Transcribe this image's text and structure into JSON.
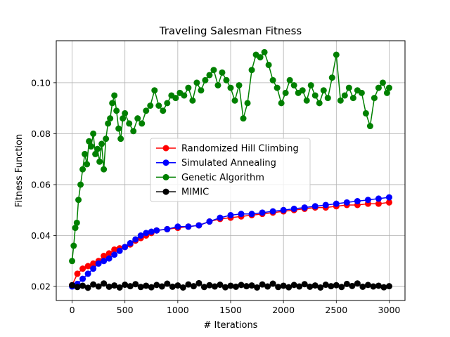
{
  "chart_data": {
    "type": "line",
    "title": "Traveling Salesman Fitness",
    "xlabel": "# Iterations",
    "ylabel": "Fitness Function",
    "xlim": [
      -150,
      3150
    ],
    "ylim": [
      0.0145,
      0.1165
    ],
    "xticks": [
      0,
      500,
      1000,
      1500,
      2000,
      2500,
      3000
    ],
    "yticks": [
      0.02,
      0.04,
      0.06,
      0.08,
      0.1
    ],
    "xtick_labels": [
      "0",
      "500",
      "1000",
      "1500",
      "2000",
      "2500",
      "3000"
    ],
    "ytick_labels": [
      "0.02",
      "0.04",
      "0.06",
      "0.08",
      "0.10"
    ],
    "grid": true,
    "legend_position": "center",
    "series": [
      {
        "name": "Randomized Hill Climbing",
        "color": "#ff0000",
        "x": [
          0,
          50,
          100,
          150,
          200,
          250,
          300,
          350,
          400,
          450,
          500,
          550,
          600,
          650,
          700,
          750,
          800,
          900,
          1000,
          1100,
          1200,
          1300,
          1400,
          1500,
          1600,
          1700,
          1800,
          1900,
          2000,
          2100,
          2200,
          2300,
          2400,
          2500,
          2600,
          2700,
          2800,
          2900,
          3000
        ],
        "y": [
          0.0205,
          0.025,
          0.027,
          0.028,
          0.029,
          0.03,
          0.032,
          0.033,
          0.0345,
          0.035,
          0.0355,
          0.0365,
          0.038,
          0.039,
          0.04,
          0.041,
          0.042,
          0.0425,
          0.043,
          0.0435,
          0.044,
          0.0455,
          0.0465,
          0.047,
          0.0475,
          0.048,
          0.0485,
          0.049,
          0.0495,
          0.05,
          0.0505,
          0.051,
          0.051,
          0.0515,
          0.052,
          0.052,
          0.0525,
          0.0525,
          0.053
        ]
      },
      {
        "name": "Simulated Annealing",
        "color": "#0000ff",
        "x": [
          0,
          50,
          100,
          150,
          200,
          250,
          300,
          350,
          400,
          450,
          500,
          550,
          600,
          650,
          700,
          750,
          800,
          900,
          1000,
          1100,
          1200,
          1300,
          1400,
          1500,
          1600,
          1700,
          1800,
          1900,
          2000,
          2100,
          2200,
          2300,
          2400,
          2500,
          2600,
          2700,
          2800,
          2900,
          3000
        ],
        "y": [
          0.02,
          0.021,
          0.023,
          0.025,
          0.027,
          0.029,
          0.03,
          0.031,
          0.0325,
          0.034,
          0.0355,
          0.037,
          0.0385,
          0.04,
          0.041,
          0.0415,
          0.042,
          0.0425,
          0.0435,
          0.0435,
          0.044,
          0.0455,
          0.047,
          0.048,
          0.0485,
          0.0485,
          0.049,
          0.0495,
          0.05,
          0.0505,
          0.051,
          0.0515,
          0.052,
          0.0525,
          0.053,
          0.0535,
          0.054,
          0.0545,
          0.055
        ]
      },
      {
        "name": "Genetic Algorithm",
        "color": "#008000",
        "x": [
          0,
          15,
          30,
          45,
          60,
          80,
          100,
          120,
          140,
          160,
          180,
          200,
          220,
          240,
          260,
          280,
          300,
          320,
          340,
          360,
          380,
          400,
          420,
          440,
          460,
          480,
          500,
          540,
          580,
          620,
          660,
          700,
          740,
          780,
          820,
          860,
          900,
          940,
          980,
          1020,
          1060,
          1100,
          1140,
          1180,
          1220,
          1260,
          1300,
          1340,
          1380,
          1420,
          1460,
          1500,
          1540,
          1580,
          1620,
          1660,
          1700,
          1740,
          1780,
          1820,
          1860,
          1900,
          1940,
          1980,
          2020,
          2060,
          2100,
          2140,
          2180,
          2220,
          2260,
          2300,
          2340,
          2380,
          2420,
          2460,
          2500,
          2540,
          2580,
          2620,
          2660,
          2700,
          2740,
          2780,
          2820,
          2860,
          2900,
          2940,
          2980,
          3000
        ],
        "y": [
          0.03,
          0.036,
          0.043,
          0.045,
          0.054,
          0.06,
          0.066,
          0.072,
          0.068,
          0.077,
          0.075,
          0.08,
          0.072,
          0.074,
          0.069,
          0.076,
          0.066,
          0.078,
          0.084,
          0.086,
          0.092,
          0.095,
          0.089,
          0.082,
          0.078,
          0.086,
          0.088,
          0.084,
          0.081,
          0.086,
          0.084,
          0.089,
          0.091,
          0.097,
          0.091,
          0.089,
          0.092,
          0.095,
          0.094,
          0.096,
          0.095,
          0.098,
          0.093,
          0.1,
          0.097,
          0.101,
          0.103,
          0.105,
          0.099,
          0.104,
          0.101,
          0.098,
          0.093,
          0.099,
          0.086,
          0.092,
          0.105,
          0.111,
          0.11,
          0.112,
          0.107,
          0.101,
          0.098,
          0.092,
          0.096,
          0.101,
          0.099,
          0.096,
          0.097,
          0.093,
          0.099,
          0.095,
          0.092,
          0.097,
          0.094,
          0.102,
          0.111,
          0.093,
          0.095,
          0.098,
          0.094,
          0.097,
          0.096,
          0.088,
          0.083,
          0.094,
          0.098,
          0.1,
          0.096,
          0.098
        ]
      },
      {
        "name": "MIMIC",
        "color": "#000000",
        "x": [
          0,
          50,
          100,
          150,
          200,
          250,
          300,
          350,
          400,
          450,
          500,
          550,
          600,
          650,
          700,
          750,
          800,
          850,
          900,
          950,
          1000,
          1050,
          1100,
          1150,
          1200,
          1250,
          1300,
          1350,
          1400,
          1450,
          1500,
          1550,
          1600,
          1650,
          1700,
          1750,
          1800,
          1850,
          1900,
          1950,
          2000,
          2050,
          2100,
          2150,
          2200,
          2250,
          2300,
          2350,
          2400,
          2450,
          2500,
          2550,
          2600,
          2650,
          2700,
          2750,
          2800,
          2850,
          2900,
          2950,
          3000
        ],
        "y": [
          0.0205,
          0.0198,
          0.0203,
          0.0195,
          0.0208,
          0.02,
          0.0212,
          0.0199,
          0.0204,
          0.0196,
          0.0207,
          0.0201,
          0.0209,
          0.0198,
          0.0203,
          0.0197,
          0.0206,
          0.02,
          0.0211,
          0.0199,
          0.0204,
          0.0196,
          0.0208,
          0.0201,
          0.0213,
          0.0198,
          0.0205,
          0.02,
          0.0207,
          0.0197,
          0.0203,
          0.0199,
          0.0206,
          0.0201,
          0.0204,
          0.0196,
          0.0208,
          0.02,
          0.0211,
          0.0198,
          0.0203,
          0.0197,
          0.0206,
          0.02,
          0.0209,
          0.0199,
          0.0204,
          0.0196,
          0.0207,
          0.0201,
          0.0205,
          0.0198,
          0.021,
          0.0202,
          0.0212,
          0.0199,
          0.0206,
          0.02,
          0.0203,
          0.0197,
          0.0201
        ]
      }
    ]
  }
}
